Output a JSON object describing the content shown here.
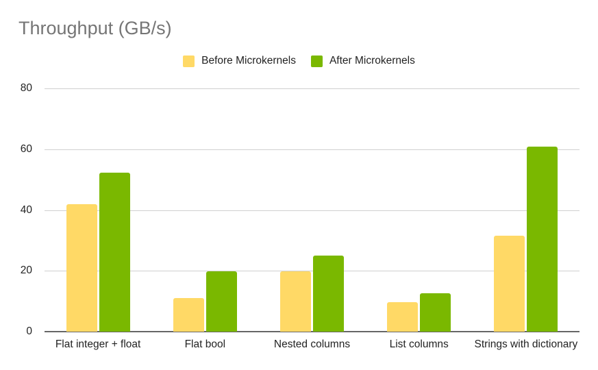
{
  "chart_data": {
    "type": "bar",
    "title": "Throughput (GB/s)",
    "xlabel": "",
    "ylabel": "",
    "ylim": [
      0,
      80
    ],
    "yticks": [
      0,
      20,
      40,
      60,
      80
    ],
    "grid": true,
    "legend_position": "top",
    "categories": [
      "Flat integer + float",
      "Flat bool",
      "Nested columns",
      "List columns",
      "Strings with dictionary"
    ],
    "series": [
      {
        "name": "Before Microkernels",
        "color": "#FFD966",
        "values": [
          41.9,
          11.0,
          19.8,
          9.7,
          31.6
        ]
      },
      {
        "name": "After Microkernels",
        "color": "#7AB800",
        "values": [
          52.3,
          19.8,
          25.0,
          12.6,
          60.8
        ]
      }
    ]
  },
  "title": "Throughput (GB/s)",
  "legend": [
    {
      "label": "Before Microkernels",
      "color": "#FFD966"
    },
    {
      "label": "After Microkernels",
      "color": "#7AB800"
    }
  ],
  "y_axis": {
    "ticks": [
      "0",
      "20",
      "40",
      "60",
      "80"
    ]
  }
}
